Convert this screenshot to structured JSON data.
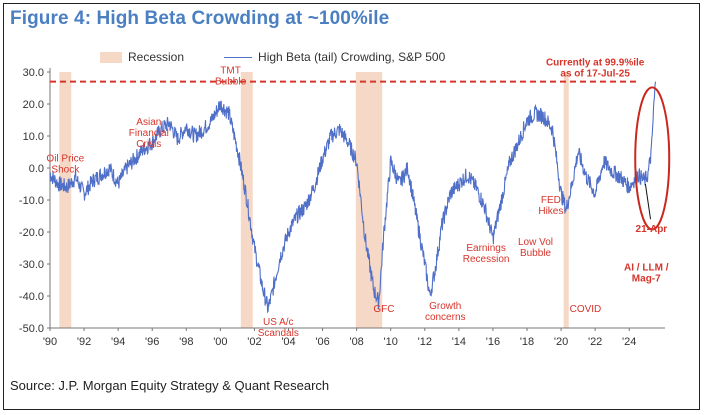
{
  "chart_data": {
    "type": "line",
    "title": "Figure 4: High Beta Crowding at ~100%ile",
    "source": "Source: J.P. Morgan Equity Strategy & Quant Research",
    "legend": {
      "recession_label": "Recession",
      "series_label": "High Beta (tail) Crowding, S&P 500",
      "placement": "top"
    },
    "xlim": [
      1990,
      2026.1
    ],
    "ylim": [
      -50,
      30
    ],
    "x_tick_labels": [
      "'90",
      "'92",
      "'94",
      "'96",
      "'98",
      "'00",
      "'02",
      "'04",
      "'06",
      "'08",
      "'10",
      "'12",
      "'14",
      "'16",
      "'18",
      "'20",
      "'22",
      "'24"
    ],
    "x_ticks": [
      1990,
      1992,
      1994,
      1996,
      1998,
      2000,
      2002,
      2004,
      2006,
      2008,
      2010,
      2012,
      2014,
      2016,
      2018,
      2020,
      2022,
      2024
    ],
    "y_tick_labels": [
      "30.0",
      "20.0",
      "10.0",
      "0.0",
      "-10.0",
      "-20.0",
      "-30.0",
      "-40.0",
      "-50.0"
    ],
    "y_ticks": [
      30,
      20,
      10,
      0,
      -10,
      -20,
      -30,
      -40,
      -50
    ],
    "recessions": [
      [
        1990.55,
        1991.25
      ],
      [
        2001.2,
        2001.9
      ],
      [
        2007.95,
        2009.5
      ],
      [
        2020.15,
        2020.45
      ]
    ],
    "threshold": 27,
    "series": [
      {
        "name": "High Beta (tail) Crowding, S&P 500",
        "color": "#4f6fc8",
        "x": [
          1990.0,
          1990.5,
          1991.0,
          1991.5,
          1992.0,
          1992.5,
          1993.0,
          1993.5,
          1994.0,
          1994.5,
          1995.0,
          1995.5,
          1996.0,
          1996.5,
          1997.0,
          1997.5,
          1998.0,
          1998.5,
          1999.0,
          1999.5,
          2000.0,
          2000.5,
          2001.0,
          2001.5,
          2002.0,
          2002.5,
          2002.8,
          2003.0,
          2003.5,
          2004.0,
          2004.5,
          2005.0,
          2005.5,
          2006.0,
          2006.5,
          2007.0,
          2007.5,
          2008.0,
          2008.5,
          2009.0,
          2009.3,
          2009.6,
          2010.0,
          2010.5,
          2011.0,
          2011.5,
          2012.0,
          2012.3,
          2012.6,
          2013.0,
          2013.5,
          2014.0,
          2014.5,
          2015.0,
          2015.5,
          2016.0,
          2016.5,
          2017.0,
          2017.5,
          2018.0,
          2018.5,
          2019.0,
          2019.5,
          2020.0,
          2020.3,
          2020.6,
          2021.0,
          2021.5,
          2022.0,
          2022.5,
          2023.0,
          2023.5,
          2024.0,
          2024.5,
          2024.9,
          2025.1,
          2025.3,
          2025.45,
          2025.55
        ],
        "y": [
          -2,
          -5,
          -6,
          -3,
          -8,
          -4,
          -2,
          0,
          -5,
          0,
          3,
          6,
          8,
          12,
          14,
          9,
          13,
          10,
          12,
          15,
          20,
          17,
          6,
          -8,
          -25,
          -38,
          -44,
          -40,
          -28,
          -20,
          -15,
          -12,
          -6,
          3,
          10,
          12,
          8,
          2,
          -22,
          -38,
          -42,
          -20,
          2,
          -5,
          0,
          -15,
          -30,
          -40,
          -32,
          -18,
          -8,
          -5,
          -2,
          -6,
          -12,
          -22,
          -10,
          2,
          8,
          15,
          17,
          16,
          12,
          -8,
          -13,
          -6,
          5,
          -3,
          -8,
          2,
          -1,
          -3,
          -6,
          -2,
          -4,
          -2,
          5,
          20,
          27
        ]
      }
    ],
    "annotations": {
      "oil": [
        "Oil Price",
        "Shock"
      ],
      "asian": [
        "Asian",
        "Financial",
        "Crisis"
      ],
      "tmt": [
        "TMT",
        "Bubble"
      ],
      "usac": [
        "US A/c",
        "Scandals"
      ],
      "gfc": [
        "GFC"
      ],
      "growth": [
        "Growth",
        "concerns"
      ],
      "earnings": [
        "Earnings",
        "Recession"
      ],
      "lowvol": [
        "Low Vol",
        "Bubble"
      ],
      "fed": [
        "FED",
        "Hikes"
      ],
      "covid": [
        "COVID"
      ],
      "ai": [
        "AI / LLM /",
        "Mag-7"
      ],
      "current": [
        "Currently at 99.9%ile",
        "as of 17-Jul-25"
      ],
      "apr": [
        "21-Apr"
      ]
    }
  }
}
